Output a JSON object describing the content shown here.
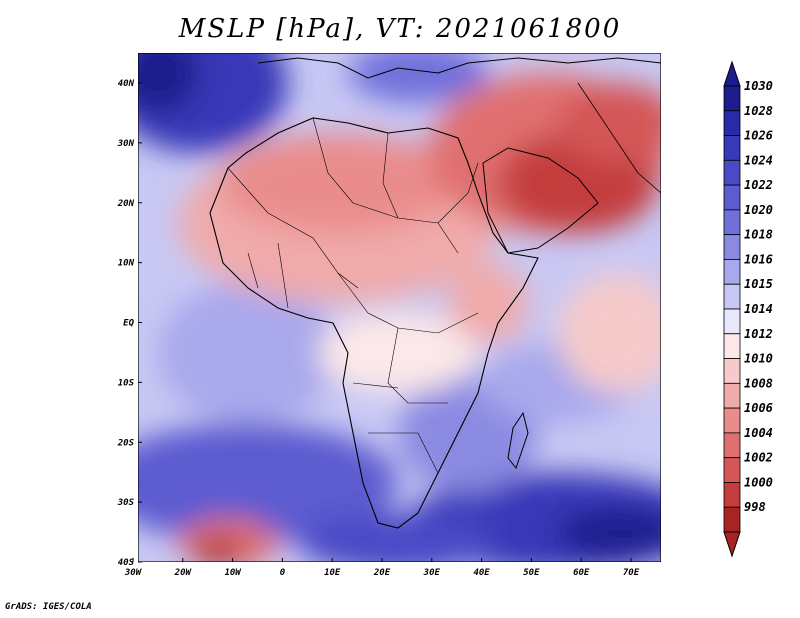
{
  "title": "MSLP [hPa], VT: 2021061800",
  "footer": "GrADS: IGES/COLA",
  "map": {
    "lat_labels": [
      "40N",
      "30N",
      "20N",
      "10N",
      "EQ",
      "10S",
      "20S",
      "30S",
      "40S"
    ],
    "lon_labels": [
      "30W",
      "20W",
      "10W",
      "0",
      "10E",
      "20E",
      "30E",
      "40E",
      "50E",
      "60E",
      "70E"
    ],
    "field_colors": {
      "deep_blue": "#2c2ca8",
      "blue": "#4646c8",
      "mid_blue": "#7070dc",
      "light_blue": "#a8a8ee",
      "pale_blue": "#d8d8f8",
      "white": "#ffffff",
      "pale_red": "#f8d0d0",
      "light_red": "#f0a8a8",
      "red": "#e07878",
      "deep_red": "#c83c3c"
    },
    "features": [
      "mslp-field",
      "coastlines",
      "country-borders"
    ]
  },
  "colorbar": {
    "levels": [
      "1030",
      "1028",
      "1026",
      "1024",
      "1022",
      "1020",
      "1018",
      "1016",
      "1015",
      "1014",
      "1012",
      "1010",
      "1008",
      "1006",
      "1004",
      "1002",
      "1000",
      "998"
    ],
    "colors": [
      "#1c1c8c",
      "#2a2aa6",
      "#3838b8",
      "#4a4ac6",
      "#5c5cd0",
      "#7070da",
      "#8a8ae2",
      "#a8a8ec",
      "#c8c8f4",
      "#e8e8fc",
      "#fce8e8",
      "#f6caca",
      "#f0aaaa",
      "#ea8c8c",
      "#e07070",
      "#d45656",
      "#c43c3c",
      "#a82424"
    ]
  }
}
